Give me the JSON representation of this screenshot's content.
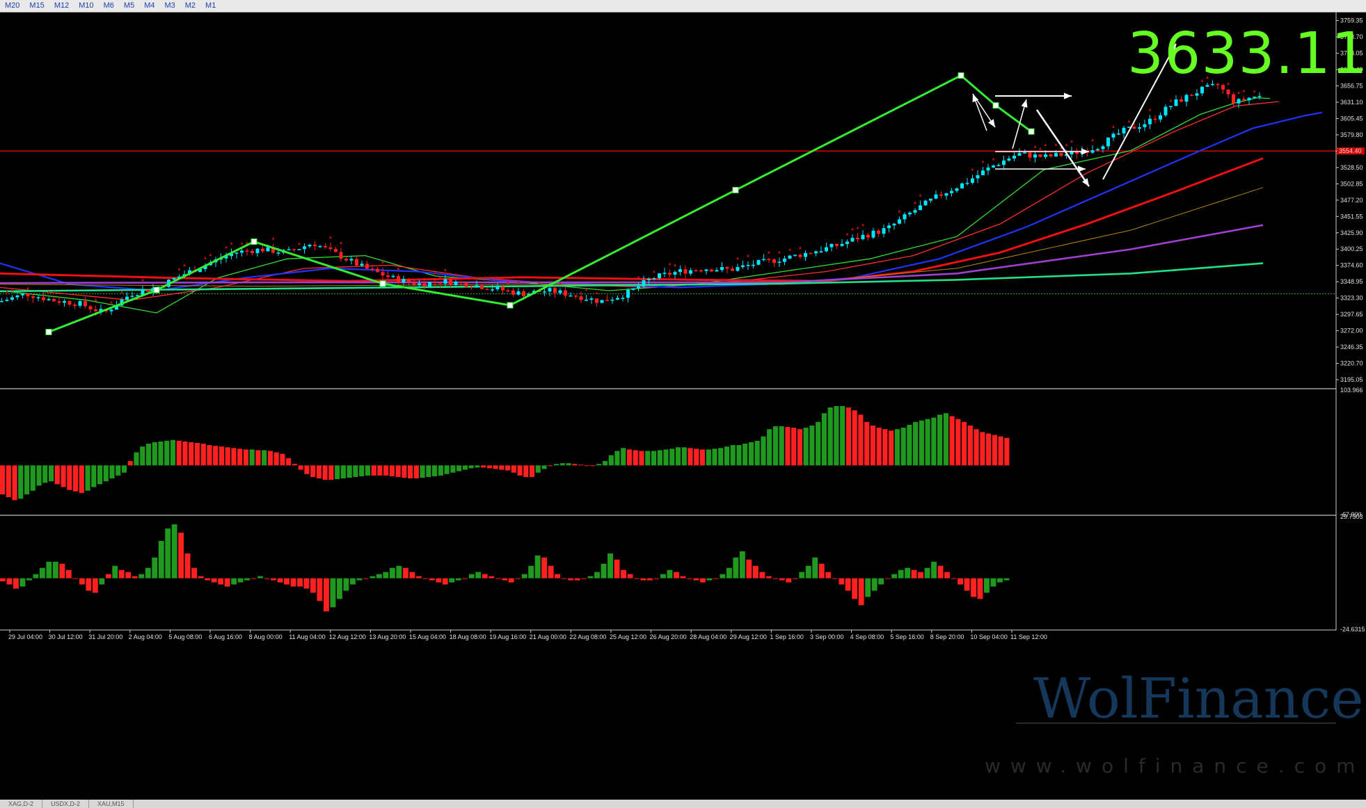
{
  "timeframes": [
    "M20",
    "M15",
    "M12",
    "M10",
    "M6",
    "M5",
    "M4",
    "M3",
    "M2",
    "M1"
  ],
  "tabs": [
    "XAG,D-2",
    "USDX,D-2",
    "XAU,M15"
  ],
  "overlay": {
    "big_price": "3633.11",
    "brand": "WolFinance",
    "url": "www.wolfinance.com"
  },
  "colors": {
    "bull": "#00e5ff",
    "bear": "#ff2020",
    "hist_up": "#1f9a1f",
    "hist_down": "#ff2020",
    "zigzag": "#33ee33",
    "arrows": "#ffffff",
    "hline": "#d40000"
  },
  "chart_data": [
    {
      "type": "candlestick",
      "ylim": [
        3182,
        3772
      ],
      "price_ticks": [
        "3759.35",
        "3733.70",
        "3708.05",
        "3682.40",
        "3656.75",
        "3631.10",
        "3605.45",
        "3579.80",
        "3554.15",
        "3528.50",
        "3502.85",
        "3477.20",
        "3451.55",
        "3425.90",
        "3400.25",
        "3374.60",
        "3348.95",
        "3323.30",
        "3297.65",
        "3272.00",
        "3246.35",
        "3220.70",
        "3195.05"
      ],
      "x_ticks": [
        "29 Jul 04:00",
        "30 Jul 12:00",
        "31 Jul 20:00",
        "2 Aug 04:00",
        "5 Aug 08:00",
        "6 Aug 16:00",
        "8 Aug 00:00",
        "11 Aug 04:00",
        "12 Aug 12:00",
        "13 Aug 20:00",
        "15 Aug 04:00",
        "18 Aug 08:00",
        "19 Aug 16:00",
        "21 Aug 00:00",
        "22 Aug 08:00",
        "25 Aug 12:00",
        "26 Aug 20:00",
        "28 Aug 04:00",
        "29 Aug 12:00",
        "1 Sep 16:00",
        "3 Sep 00:00",
        "4 Sep 08:00",
        "5 Sep 16:00",
        "8 Sep 20:00",
        "10 Sep 04:00",
        "11 Sep 12:00"
      ],
      "current_price_label": "3554.40",
      "hline_price": 3554.4,
      "support_price": 3330,
      "close_path": [
        [
          0,
          3318
        ],
        [
          30,
          3330
        ],
        [
          60,
          3320
        ],
        [
          90,
          3315
        ],
        [
          120,
          3300
        ],
        [
          150,
          3330
        ],
        [
          180,
          3340
        ],
        [
          210,
          3360
        ],
        [
          240,
          3378
        ],
        [
          270,
          3395
        ],
        [
          300,
          3400
        ],
        [
          330,
          3395
        ],
        [
          360,
          3410
        ],
        [
          390,
          3390
        ],
        [
          420,
          3370
        ],
        [
          450,
          3355
        ],
        [
          480,
          3345
        ],
        [
          510,
          3350
        ],
        [
          540,
          3345
        ],
        [
          570,
          3338
        ],
        [
          600,
          3330
        ],
        [
          630,
          3335
        ],
        [
          660,
          3328
        ],
        [
          690,
          3318
        ],
        [
          720,
          3330
        ],
        [
          750,
          3355
        ],
        [
          780,
          3365
        ],
        [
          810,
          3370
        ],
        [
          840,
          3368
        ],
        [
          870,
          3378
        ],
        [
          900,
          3385
        ],
        [
          930,
          3395
        ],
        [
          960,
          3405
        ],
        [
          990,
          3420
        ],
        [
          1020,
          3432
        ],
        [
          1050,
          3460
        ],
        [
          1080,
          3485
        ],
        [
          1110,
          3505
        ],
        [
          1140,
          3530
        ],
        [
          1170,
          3550
        ],
        [
          1200,
          3545
        ],
        [
          1230,
          3550
        ],
        [
          1260,
          3560
        ],
        [
          1290,
          3585
        ],
        [
          1320,
          3600
        ],
        [
          1350,
          3630
        ],
        [
          1380,
          3650
        ],
        [
          1400,
          3658
        ],
        [
          1420,
          3630
        ],
        [
          1440,
          3640
        ]
      ],
      "zigzag": [
        [
          70,
          3270
        ],
        [
          225,
          3336
        ],
        [
          365,
          3412
        ],
        [
          550,
          3346
        ],
        [
          733,
          3312
        ],
        [
          1057,
          3493
        ],
        [
          1381,
          3673
        ],
        [
          1431,
          3626
        ],
        [
          1482,
          3585
        ]
      ],
      "moving_averages": [
        {
          "color": "#33dd33",
          "width": 1.3,
          "points": [
            [
              0,
              3335
            ],
            [
              100,
              3320
            ],
            [
              180,
              3300
            ],
            [
              250,
              3355
            ],
            [
              330,
              3385
            ],
            [
              420,
              3390
            ],
            [
              500,
              3358
            ],
            [
              600,
              3348
            ],
            [
              700,
              3335
            ],
            [
              800,
              3345
            ],
            [
              900,
              3365
            ],
            [
              1000,
              3385
            ],
            [
              1100,
              3420
            ],
            [
              1200,
              3525
            ],
            [
              1300,
              3555
            ],
            [
              1380,
              3612
            ],
            [
              1420,
              3630
            ],
            [
              1445,
              3638
            ],
            [
              1460,
              3637
            ]
          ]
        },
        {
          "color": "#ff3030",
          "width": 1.3,
          "points": [
            [
              0,
              3340
            ],
            [
              150,
              3320
            ],
            [
              250,
              3340
            ],
            [
              350,
              3370
            ],
            [
              450,
              3375
            ],
            [
              550,
              3355
            ],
            [
              650,
              3345
            ],
            [
              750,
              3340
            ],
            [
              850,
              3350
            ],
            [
              950,
              3365
            ],
            [
              1050,
              3390
            ],
            [
              1150,
              3440
            ],
            [
              1250,
              3520
            ],
            [
              1350,
              3585
            ],
            [
              1420,
              3625
            ],
            [
              1470,
              3632
            ]
          ]
        },
        {
          "color": "#2233ff",
          "width": 2.2,
          "points": [
            [
              0,
              3378
            ],
            [
              80,
              3345
            ],
            [
              180,
              3335
            ],
            [
              280,
              3355
            ],
            [
              380,
              3370
            ],
            [
              480,
              3365
            ],
            [
              580,
              3350
            ],
            [
              680,
              3345
            ],
            [
              780,
              3340
            ],
            [
              880,
              3345
            ],
            [
              980,
              3355
            ],
            [
              1080,
              3385
            ],
            [
              1180,
              3435
            ],
            [
              1280,
              3495
            ],
            [
              1380,
              3555
            ],
            [
              1440,
              3590
            ],
            [
              1500,
              3610
            ],
            [
              1520,
              3615
            ]
          ]
        },
        {
          "color": "#ee1111",
          "width": 3,
          "points": [
            [
              0,
              3362
            ],
            [
              200,
              3355
            ],
            [
              400,
              3350
            ],
            [
              600,
              3356
            ],
            [
              800,
              3352
            ],
            [
              950,
              3350
            ],
            [
              1050,
              3365
            ],
            [
              1150,
              3395
            ],
            [
              1250,
              3440
            ],
            [
              1350,
              3490
            ],
            [
              1452,
              3543
            ]
          ]
        },
        {
          "color": "#b8860b",
          "width": 1,
          "points": [
            [
              0,
              3345
            ],
            [
              300,
              3342
            ],
            [
              600,
              3345
            ],
            [
              900,
              3345
            ],
            [
              1100,
              3370
            ],
            [
              1300,
              3430
            ],
            [
              1452,
              3497
            ]
          ]
        },
        {
          "color": "#a040d0",
          "width": 2.6,
          "points": [
            [
              0,
              3347
            ],
            [
              300,
              3348
            ],
            [
              600,
              3348
            ],
            [
              900,
              3348
            ],
            [
              1100,
              3362
            ],
            [
              1300,
              3400
            ],
            [
              1452,
              3438
            ]
          ]
        },
        {
          "color": "#22e08a",
          "width": 2.6,
          "points": [
            [
              0,
              3334
            ],
            [
              300,
              3338
            ],
            [
              600,
              3342
            ],
            [
              900,
              3346
            ],
            [
              1100,
              3352
            ],
            [
              1300,
              3362
            ],
            [
              1452,
              3378
            ]
          ]
        }
      ]
    },
    {
      "type": "bar",
      "name": "oscillator-1",
      "ylim": [
        -67.9,
        103.966
      ],
      "tick_labels": [
        "103.966",
        "-67.900"
      ],
      "values": [
        -40,
        -44,
        -48,
        -46,
        -40,
        -35,
        -28,
        -24,
        -22,
        -26,
        -30,
        -34,
        -36,
        -38,
        -35,
        -30,
        -26,
        -22,
        -18,
        -14,
        -10,
        6,
        18,
        26,
        30,
        32,
        33,
        34,
        35,
        34,
        33,
        32,
        31,
        30,
        28,
        27,
        26,
        25,
        24,
        23,
        22,
        22,
        21,
        21,
        20,
        18,
        16,
        10,
        2,
        -6,
        -12,
        -16,
        -18,
        -20,
        -20,
        -19,
        -18,
        -17,
        -16,
        -15,
        -14,
        -14,
        -14,
        -14,
        -15,
        -16,
        -17,
        -18,
        -18,
        -17,
        -16,
        -15,
        -14,
        -12,
        -10,
        -8,
        -6,
        -4,
        -3,
        -3,
        -4,
        -5,
        -6,
        -7,
        -10,
        -14,
        -16,
        -16,
        -10,
        -5,
        0,
        2,
        3,
        3,
        2,
        1,
        0,
        -1,
        2,
        6,
        14,
        20,
        24,
        22,
        21,
        20,
        20,
        20,
        21,
        22,
        23,
        25,
        25,
        24,
        23,
        22,
        22,
        23,
        24,
        26,
        28,
        28,
        30,
        32,
        34,
        40,
        50,
        54,
        54,
        53,
        52,
        50,
        52,
        55,
        60,
        72,
        80,
        82,
        82,
        80,
        76,
        70,
        60,
        55,
        52,
        50,
        48,
        50,
        52,
        56,
        60,
        62,
        64,
        66,
        70,
        72,
        68,
        64,
        60,
        55,
        50,
        46,
        44,
        42,
        40,
        38
      ]
    },
    {
      "type": "bar",
      "name": "oscillator-2",
      "ylim": [
        -24.6315,
        29.7303
      ],
      "tick_labels": [
        "29.7303",
        "-24.6315"
      ],
      "values": [
        -1.5,
        -3,
        -5,
        -4,
        -1,
        2,
        5,
        8,
        8,
        7,
        4,
        0,
        -3,
        -6,
        -7,
        -3,
        2,
        6,
        4,
        3,
        1,
        2,
        5,
        10,
        18,
        24,
        26,
        22,
        12,
        5,
        1,
        -1,
        -2,
        -3,
        -4,
        -3,
        -2,
        -1,
        0,
        1,
        0,
        -1,
        -2,
        -3,
        -4,
        -4,
        -5,
        -7,
        -11,
        -16,
        -14,
        -10,
        -6,
        -3,
        -1,
        0,
        1,
        2,
        3,
        5,
        6,
        5,
        3,
        1,
        0,
        -1,
        -2,
        -3,
        -2,
        -1,
        0,
        2,
        3,
        2,
        1,
        0,
        -1,
        -2,
        0,
        2,
        6,
        11,
        10,
        6,
        2,
        0,
        -1,
        -1,
        0,
        1,
        3,
        7,
        12,
        9,
        4,
        2,
        0,
        -1,
        -1,
        0,
        2,
        4,
        3,
        1,
        0,
        -1,
        -2,
        -1,
        0,
        2,
        5,
        10,
        13,
        9,
        6,
        3,
        1,
        0,
        -1,
        -2,
        0,
        3,
        6,
        10,
        7,
        3,
        0,
        -3,
        -6,
        -10,
        -13,
        -9,
        -6,
        -3,
        0,
        2,
        4,
        5,
        4,
        3,
        5,
        8,
        6,
        3,
        0,
        -3,
        -6,
        -9,
        -10,
        -7,
        -4,
        -2,
        -1
      ]
    }
  ]
}
